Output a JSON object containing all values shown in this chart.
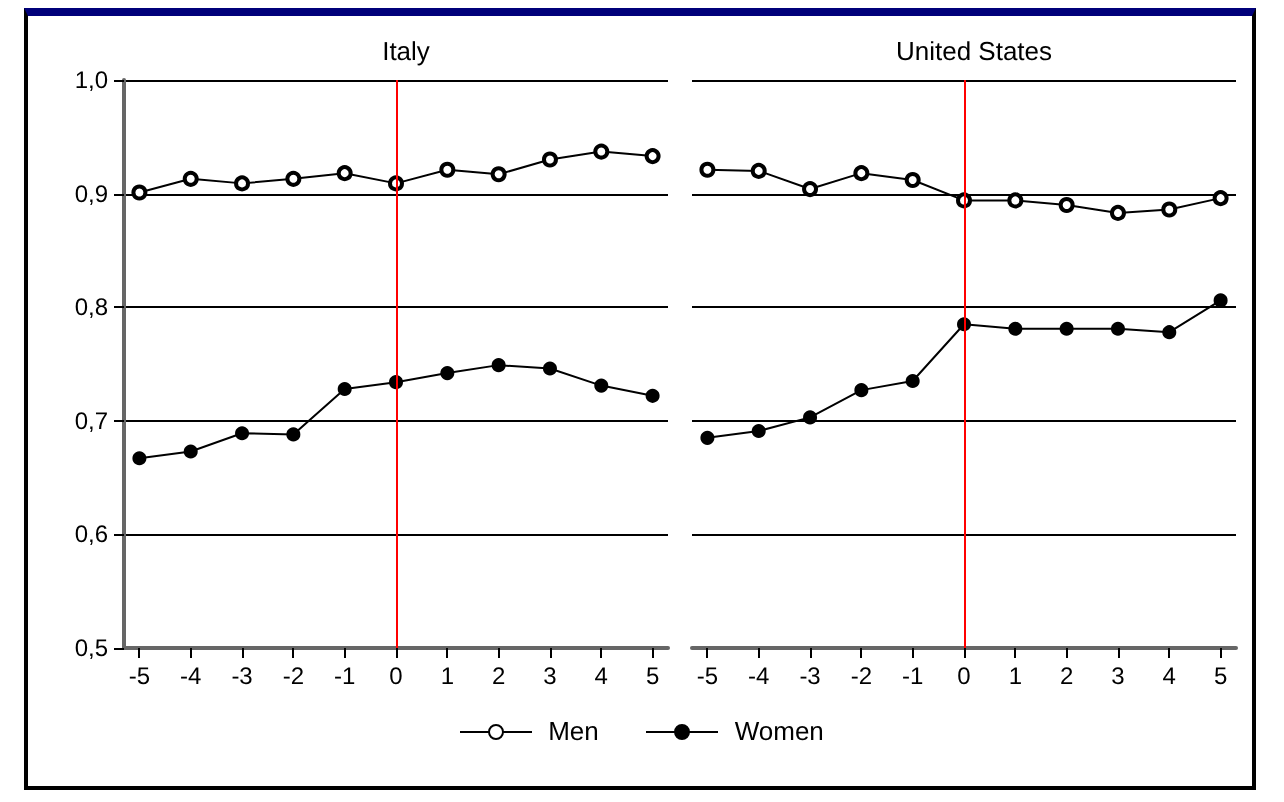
{
  "chart_data": [
    {
      "type": "line",
      "title": "Italy",
      "x": [
        -5,
        -4,
        -3,
        -2,
        -1,
        0,
        1,
        2,
        3,
        4,
        5
      ],
      "series": [
        {
          "name": "Men",
          "color": "#000000",
          "values": [
            0.901,
            0.913,
            0.909,
            0.913,
            0.918,
            0.909,
            0.921,
            0.917,
            0.93,
            0.937,
            0.933
          ]
        },
        {
          "name": "Women",
          "color": "#000000",
          "values": [
            0.667,
            0.673,
            0.689,
            0.688,
            0.728,
            0.734,
            0.742,
            0.749,
            0.746,
            0.731,
            0.722
          ]
        }
      ],
      "xlim": [
        -5.3,
        5.3
      ],
      "xticks": [
        -5,
        -4,
        -3,
        -2,
        -1,
        0,
        1,
        2,
        3,
        4,
        5
      ],
      "ylim": [
        0.5,
        1.0
      ],
      "yticks": [
        {
          "value": 0.5,
          "label": "0,5"
        },
        {
          "value": 0.6,
          "label": "0,6"
        },
        {
          "value": 0.7,
          "label": "0,7"
        },
        {
          "value": 0.8,
          "label": "0,8"
        },
        {
          "value": 0.9,
          "label": "0,9"
        },
        {
          "value": 1.0,
          "label": "1,0"
        }
      ],
      "ref_lines": [
        {
          "axis": "x",
          "value": 0,
          "color": "#ff0000"
        }
      ],
      "grid": "y",
      "marker": "circle",
      "legend": "bottom"
    },
    {
      "type": "line",
      "title": "United States",
      "x": [
        -5,
        -4,
        -3,
        -2,
        -1,
        0,
        1,
        2,
        3,
        4,
        5
      ],
      "series": [
        {
          "color": "#000000",
          "values": [
            0.921,
            0.92,
            0.904,
            0.918,
            0.912,
            0.894,
            0.894,
            0.89,
            0.883,
            0.886,
            0.896
          ]
        },
        {
          "color": "#000000",
          "values": [
            0.685,
            0.691,
            0.703,
            0.727,
            0.735,
            0.785,
            0.781,
            0.781,
            0.781,
            0.778,
            0.806
          ]
        }
      ],
      "xlim": [
        -5.3,
        5.3
      ],
      "xticks": [
        -5,
        -4,
        -3,
        -2,
        -1,
        0,
        1,
        2,
        3,
        4,
        5
      ],
      "ylim": [
        0.5,
        1.0
      ],
      "yticks": [
        {
          "value": 0.5,
          "label": null
        },
        {
          "value": 0.6,
          "label": null
        },
        {
          "value": 0.7,
          "label": null
        },
        {
          "value": 0.8,
          "label": null
        },
        {
          "value": 0.9,
          "label": null
        },
        {
          "value": 1.0,
          "label": null
        }
      ],
      "ref_lines": [
        {
          "axis": "x",
          "value": 0,
          "color": "#ff0000"
        }
      ],
      "grid": "y",
      "marker": "circle",
      "tick_labels": "x",
      "legend": false
    }
  ]
}
